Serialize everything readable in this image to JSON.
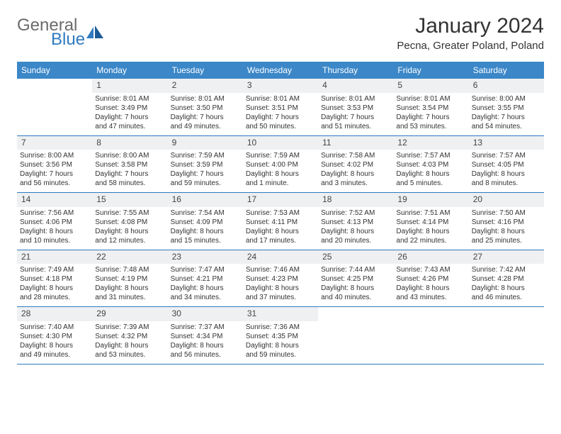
{
  "logo": {
    "text1": "General",
    "text2": "Blue",
    "color_general": "#6b6b6b",
    "color_blue": "#2f7ac0"
  },
  "header": {
    "month_title": "January 2024",
    "location": "Pecna, Greater Poland, Poland"
  },
  "colors": {
    "header_bar": "#3b87c8",
    "row_divider": "#2f7ac0",
    "daynum_bg": "#eef0f2",
    "text": "#333333"
  },
  "weekdays": [
    "Sunday",
    "Monday",
    "Tuesday",
    "Wednesday",
    "Thursday",
    "Friday",
    "Saturday"
  ],
  "weeks": [
    [
      {
        "empty": true
      },
      {
        "num": "1",
        "sunrise": "Sunrise: 8:01 AM",
        "sunset": "Sunset: 3:49 PM",
        "daylight1": "Daylight: 7 hours",
        "daylight2": "and 47 minutes."
      },
      {
        "num": "2",
        "sunrise": "Sunrise: 8:01 AM",
        "sunset": "Sunset: 3:50 PM",
        "daylight1": "Daylight: 7 hours",
        "daylight2": "and 49 minutes."
      },
      {
        "num": "3",
        "sunrise": "Sunrise: 8:01 AM",
        "sunset": "Sunset: 3:51 PM",
        "daylight1": "Daylight: 7 hours",
        "daylight2": "and 50 minutes."
      },
      {
        "num": "4",
        "sunrise": "Sunrise: 8:01 AM",
        "sunset": "Sunset: 3:53 PM",
        "daylight1": "Daylight: 7 hours",
        "daylight2": "and 51 minutes."
      },
      {
        "num": "5",
        "sunrise": "Sunrise: 8:01 AM",
        "sunset": "Sunset: 3:54 PM",
        "daylight1": "Daylight: 7 hours",
        "daylight2": "and 53 minutes."
      },
      {
        "num": "6",
        "sunrise": "Sunrise: 8:00 AM",
        "sunset": "Sunset: 3:55 PM",
        "daylight1": "Daylight: 7 hours",
        "daylight2": "and 54 minutes."
      }
    ],
    [
      {
        "num": "7",
        "sunrise": "Sunrise: 8:00 AM",
        "sunset": "Sunset: 3:56 PM",
        "daylight1": "Daylight: 7 hours",
        "daylight2": "and 56 minutes."
      },
      {
        "num": "8",
        "sunrise": "Sunrise: 8:00 AM",
        "sunset": "Sunset: 3:58 PM",
        "daylight1": "Daylight: 7 hours",
        "daylight2": "and 58 minutes."
      },
      {
        "num": "9",
        "sunrise": "Sunrise: 7:59 AM",
        "sunset": "Sunset: 3:59 PM",
        "daylight1": "Daylight: 7 hours",
        "daylight2": "and 59 minutes."
      },
      {
        "num": "10",
        "sunrise": "Sunrise: 7:59 AM",
        "sunset": "Sunset: 4:00 PM",
        "daylight1": "Daylight: 8 hours",
        "daylight2": "and 1 minute."
      },
      {
        "num": "11",
        "sunrise": "Sunrise: 7:58 AM",
        "sunset": "Sunset: 4:02 PM",
        "daylight1": "Daylight: 8 hours",
        "daylight2": "and 3 minutes."
      },
      {
        "num": "12",
        "sunrise": "Sunrise: 7:57 AM",
        "sunset": "Sunset: 4:03 PM",
        "daylight1": "Daylight: 8 hours",
        "daylight2": "and 5 minutes."
      },
      {
        "num": "13",
        "sunrise": "Sunrise: 7:57 AM",
        "sunset": "Sunset: 4:05 PM",
        "daylight1": "Daylight: 8 hours",
        "daylight2": "and 8 minutes."
      }
    ],
    [
      {
        "num": "14",
        "sunrise": "Sunrise: 7:56 AM",
        "sunset": "Sunset: 4:06 PM",
        "daylight1": "Daylight: 8 hours",
        "daylight2": "and 10 minutes."
      },
      {
        "num": "15",
        "sunrise": "Sunrise: 7:55 AM",
        "sunset": "Sunset: 4:08 PM",
        "daylight1": "Daylight: 8 hours",
        "daylight2": "and 12 minutes."
      },
      {
        "num": "16",
        "sunrise": "Sunrise: 7:54 AM",
        "sunset": "Sunset: 4:09 PM",
        "daylight1": "Daylight: 8 hours",
        "daylight2": "and 15 minutes."
      },
      {
        "num": "17",
        "sunrise": "Sunrise: 7:53 AM",
        "sunset": "Sunset: 4:11 PM",
        "daylight1": "Daylight: 8 hours",
        "daylight2": "and 17 minutes."
      },
      {
        "num": "18",
        "sunrise": "Sunrise: 7:52 AM",
        "sunset": "Sunset: 4:13 PM",
        "daylight1": "Daylight: 8 hours",
        "daylight2": "and 20 minutes."
      },
      {
        "num": "19",
        "sunrise": "Sunrise: 7:51 AM",
        "sunset": "Sunset: 4:14 PM",
        "daylight1": "Daylight: 8 hours",
        "daylight2": "and 22 minutes."
      },
      {
        "num": "20",
        "sunrise": "Sunrise: 7:50 AM",
        "sunset": "Sunset: 4:16 PM",
        "daylight1": "Daylight: 8 hours",
        "daylight2": "and 25 minutes."
      }
    ],
    [
      {
        "num": "21",
        "sunrise": "Sunrise: 7:49 AM",
        "sunset": "Sunset: 4:18 PM",
        "daylight1": "Daylight: 8 hours",
        "daylight2": "and 28 minutes."
      },
      {
        "num": "22",
        "sunrise": "Sunrise: 7:48 AM",
        "sunset": "Sunset: 4:19 PM",
        "daylight1": "Daylight: 8 hours",
        "daylight2": "and 31 minutes."
      },
      {
        "num": "23",
        "sunrise": "Sunrise: 7:47 AM",
        "sunset": "Sunset: 4:21 PM",
        "daylight1": "Daylight: 8 hours",
        "daylight2": "and 34 minutes."
      },
      {
        "num": "24",
        "sunrise": "Sunrise: 7:46 AM",
        "sunset": "Sunset: 4:23 PM",
        "daylight1": "Daylight: 8 hours",
        "daylight2": "and 37 minutes."
      },
      {
        "num": "25",
        "sunrise": "Sunrise: 7:44 AM",
        "sunset": "Sunset: 4:25 PM",
        "daylight1": "Daylight: 8 hours",
        "daylight2": "and 40 minutes."
      },
      {
        "num": "26",
        "sunrise": "Sunrise: 7:43 AM",
        "sunset": "Sunset: 4:26 PM",
        "daylight1": "Daylight: 8 hours",
        "daylight2": "and 43 minutes."
      },
      {
        "num": "27",
        "sunrise": "Sunrise: 7:42 AM",
        "sunset": "Sunset: 4:28 PM",
        "daylight1": "Daylight: 8 hours",
        "daylight2": "and 46 minutes."
      }
    ],
    [
      {
        "num": "28",
        "sunrise": "Sunrise: 7:40 AM",
        "sunset": "Sunset: 4:30 PM",
        "daylight1": "Daylight: 8 hours",
        "daylight2": "and 49 minutes."
      },
      {
        "num": "29",
        "sunrise": "Sunrise: 7:39 AM",
        "sunset": "Sunset: 4:32 PM",
        "daylight1": "Daylight: 8 hours",
        "daylight2": "and 53 minutes."
      },
      {
        "num": "30",
        "sunrise": "Sunrise: 7:37 AM",
        "sunset": "Sunset: 4:34 PM",
        "daylight1": "Daylight: 8 hours",
        "daylight2": "and 56 minutes."
      },
      {
        "num": "31",
        "sunrise": "Sunrise: 7:36 AM",
        "sunset": "Sunset: 4:35 PM",
        "daylight1": "Daylight: 8 hours",
        "daylight2": "and 59 minutes."
      },
      {
        "empty": true
      },
      {
        "empty": true
      },
      {
        "empty": true
      }
    ]
  ]
}
